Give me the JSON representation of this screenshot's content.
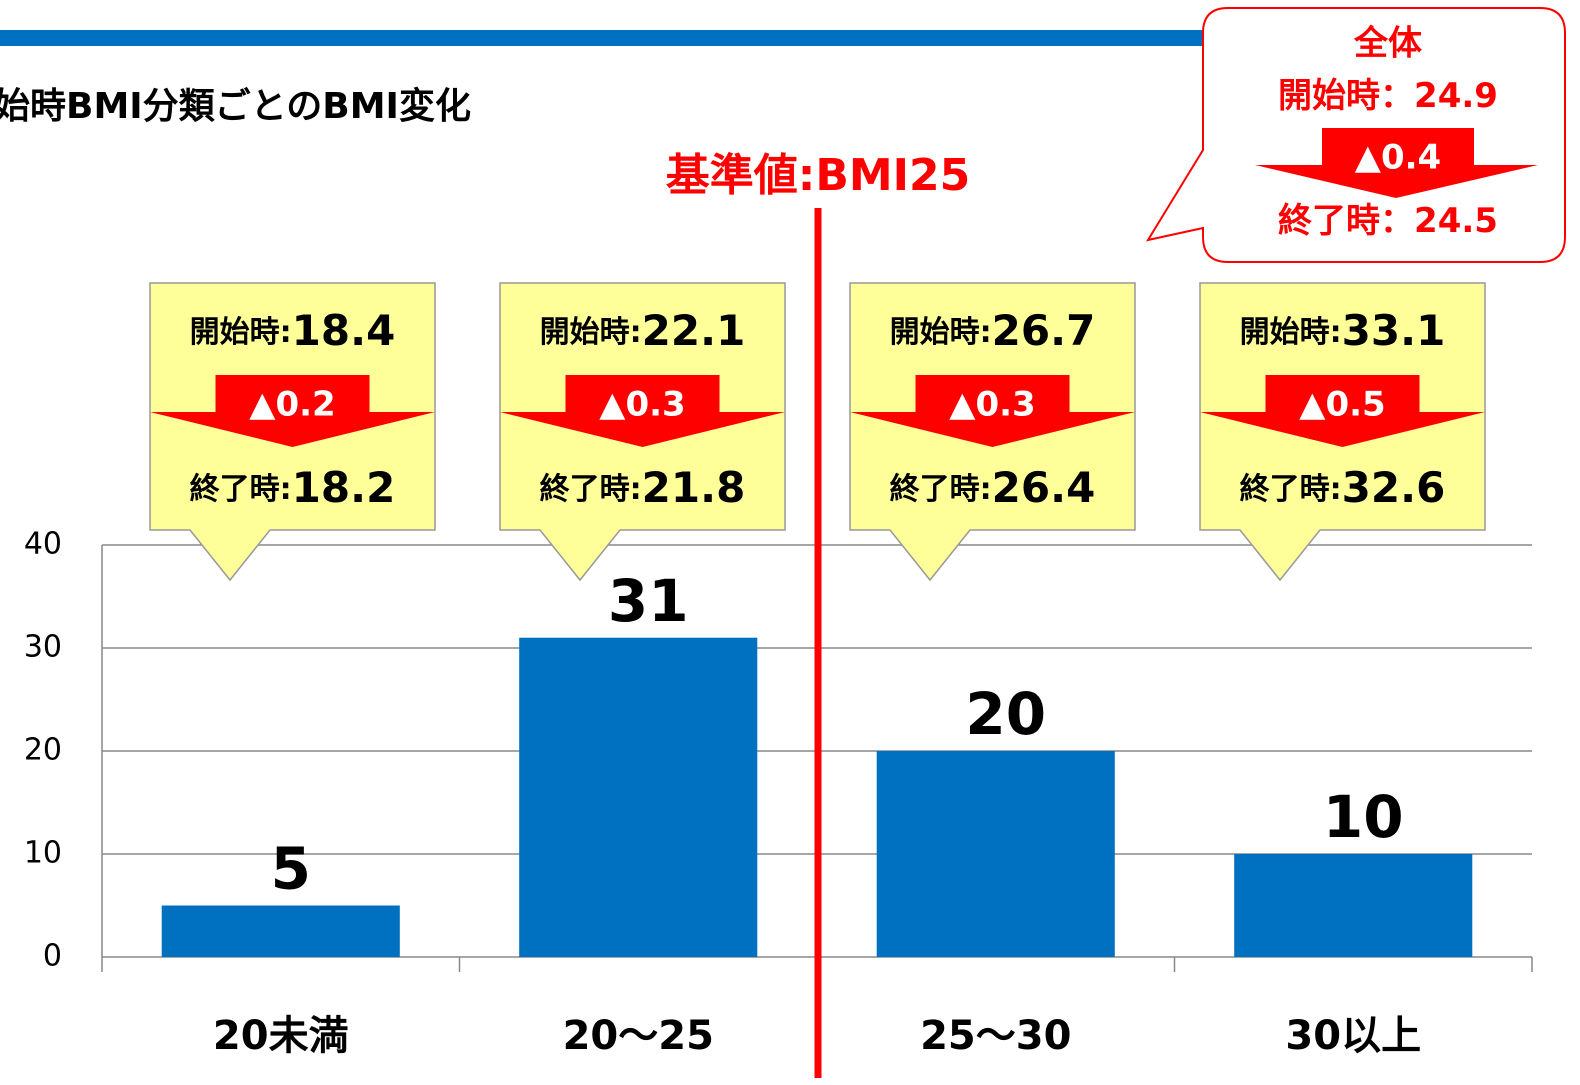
{
  "chart_data": {
    "type": "bar",
    "title": "始時BMI分類ごとのBMI変化",
    "reference_label": "基準値:BMI25",
    "categories": [
      "20未満",
      "20〜25",
      "25〜30",
      "30以上"
    ],
    "values": [
      5,
      31,
      20,
      10
    ],
    "color": "#0070c0",
    "ylim": [
      0,
      40
    ],
    "yticks": [
      0,
      10,
      20,
      30,
      40
    ],
    "grid": true,
    "start_label": "開始時:",
    "end_label": "終了時:",
    "callouts": [
      {
        "start": 18.4,
        "change": "▲0.2",
        "end": 18.2
      },
      {
        "start": 22.1,
        "change": "▲0.3",
        "end": 21.8
      },
      {
        "start": 26.7,
        "change": "▲0.3",
        "end": 26.4
      },
      {
        "start": 33.1,
        "change": "▲0.5",
        "end": 32.6
      }
    ],
    "overall": {
      "title": "全体",
      "start_label": "開始時：",
      "start": 24.9,
      "change": "▲0.4",
      "end_label": "終了時：",
      "end": 24.5
    }
  }
}
